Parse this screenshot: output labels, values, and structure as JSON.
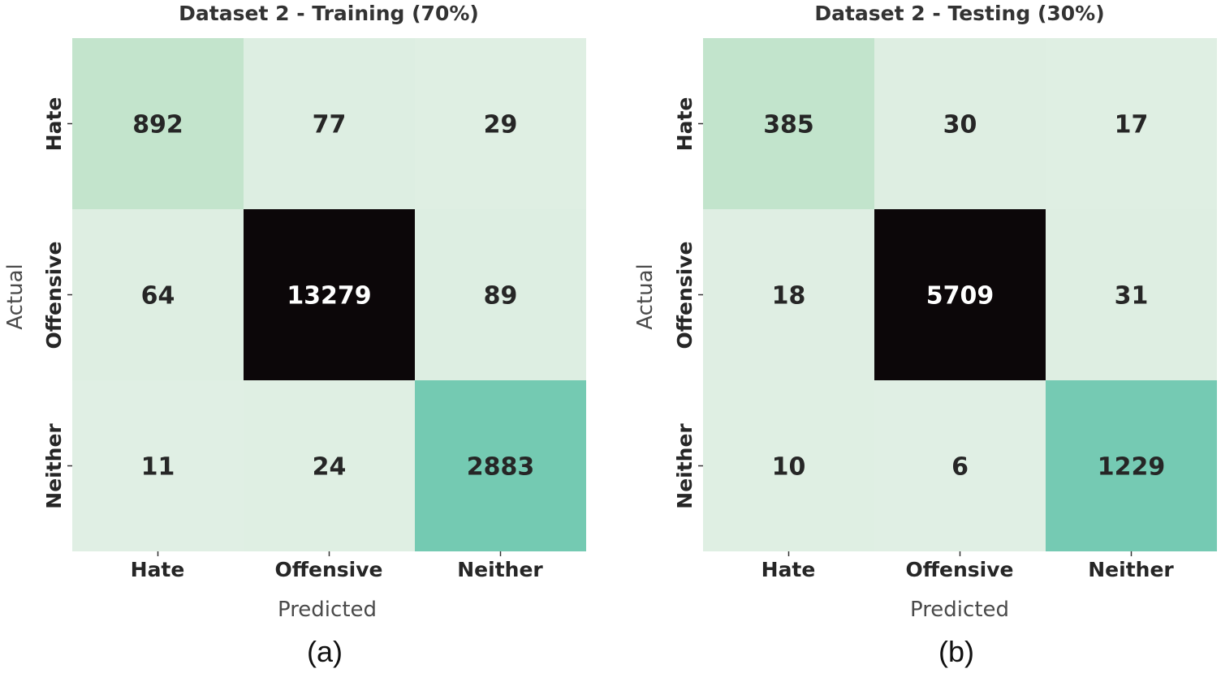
{
  "chart_data": [
    {
      "type": "heatmap",
      "title": "Dataset 2 - Training (70%)",
      "xlabel": "Predicted",
      "ylabel": "Actual",
      "x_categories": [
        "Hate",
        "Offensive",
        "Neither"
      ],
      "y_categories": [
        "Hate",
        "Offensive",
        "Neither"
      ],
      "values": [
        [
          892,
          77,
          29
        ],
        [
          64,
          13279,
          89
        ],
        [
          11,
          24,
          2883
        ]
      ],
      "caption": "(a)",
      "colors": {
        "low": "#e0efe4",
        "mid1": "#bde2c8",
        "mid2": "#62c4ad",
        "high": "#0c0709"
      }
    },
    {
      "type": "heatmap",
      "title": "Dataset 2 - Testing (30%)",
      "xlabel": "Predicted",
      "ylabel": "Actual",
      "x_categories": [
        "Hate",
        "Offensive",
        "Neither"
      ],
      "y_categories": [
        "Hate",
        "Offensive",
        "Neither"
      ],
      "values": [
        [
          385,
          30,
          17
        ],
        [
          18,
          5709,
          31
        ],
        [
          10,
          6,
          1229
        ]
      ],
      "caption": "(b)",
      "colors": {
        "low": "#e0efe4",
        "mid1": "#bde2c8",
        "mid2": "#62c4ad",
        "high": "#0c0709"
      }
    }
  ]
}
